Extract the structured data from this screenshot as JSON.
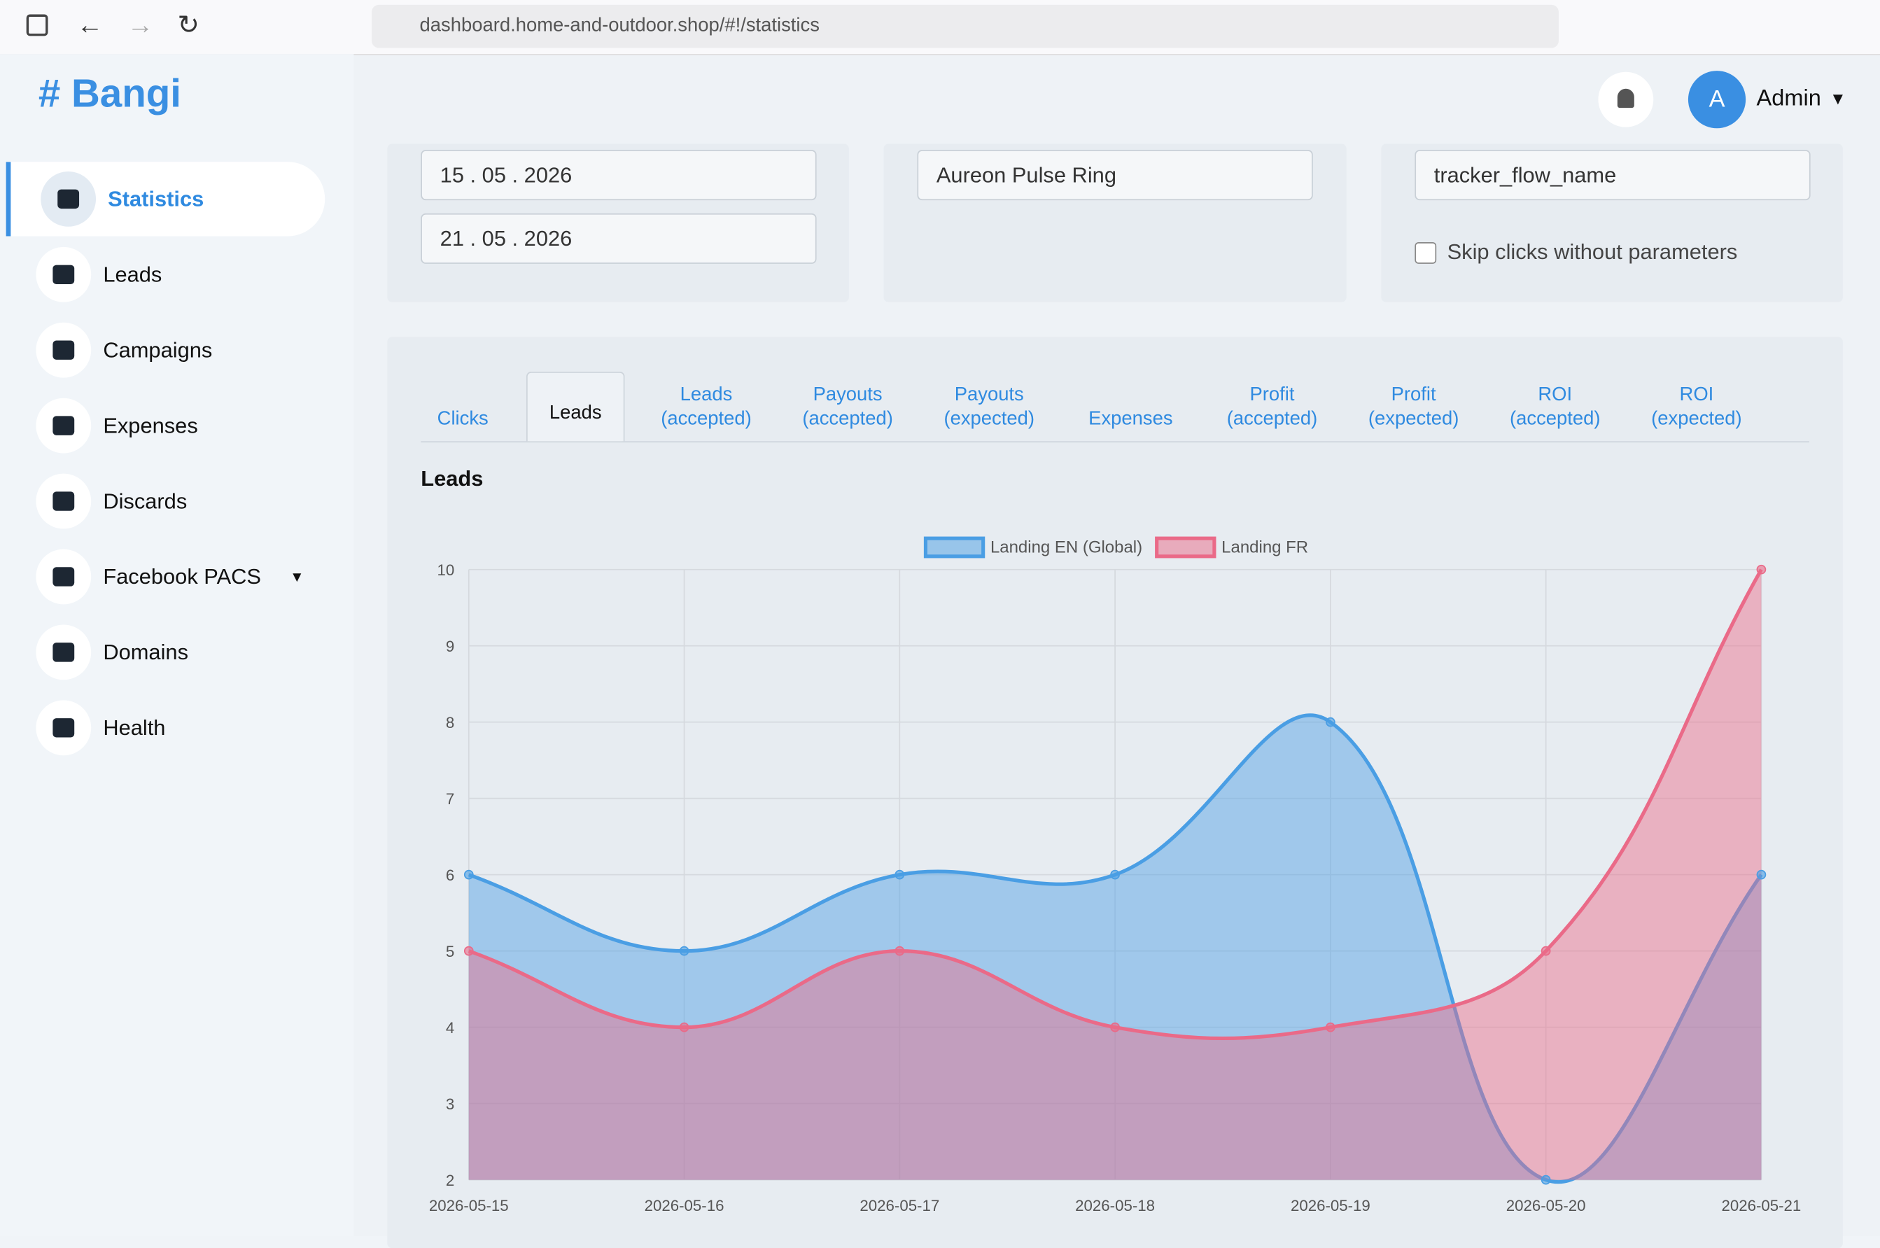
{
  "browser": {
    "url": "dashboard.home-and-outdoor.shop/#!/statistics"
  },
  "header": {
    "logo": "# Bangi",
    "avatar": "A",
    "user": "Admin"
  },
  "sidebar": {
    "items": [
      "Statistics",
      "Leads",
      "Campaigns",
      "Expenses",
      "Discards",
      "Facebook PACS",
      "Domains",
      "Health"
    ]
  },
  "filters": {
    "date_from": "15 . 05 . 2026",
    "date_to": "21 . 05 . 2026",
    "product": "Aureon Pulse Ring",
    "flow": "tracker_flow_name",
    "skip_label": "Skip clicks without parameters"
  },
  "tabs": [
    "Clicks",
    "Leads",
    "Leads (accepted)",
    "Payouts (accepted)",
    "Payouts (expected)",
    "Expenses",
    "Profit (accepted)",
    "Profit (expected)",
    "ROI (accepted)",
    "ROI (expected)"
  ],
  "chart": {
    "type": "line",
    "title": "Leads",
    "categories": [
      "2026-05-15",
      "2026-05-16",
      "2026-05-17",
      "2026-05-18",
      "2026-05-19",
      "2026-05-20",
      "2026-05-21"
    ],
    "series": [
      {
        "name": "Landing EN (Global)",
        "color": "#4a9ee4",
        "values": [
          6,
          5,
          6,
          6,
          8,
          2,
          6
        ]
      },
      {
        "name": "Landing FR",
        "color": "#ea6a88",
        "values": [
          5,
          4,
          5,
          4,
          4,
          5,
          10
        ]
      }
    ],
    "ylim": [
      2,
      10
    ],
    "yticks": [
      2,
      3,
      4,
      5,
      6,
      7,
      8,
      9,
      10
    ],
    "grid": true,
    "fill": true
  }
}
